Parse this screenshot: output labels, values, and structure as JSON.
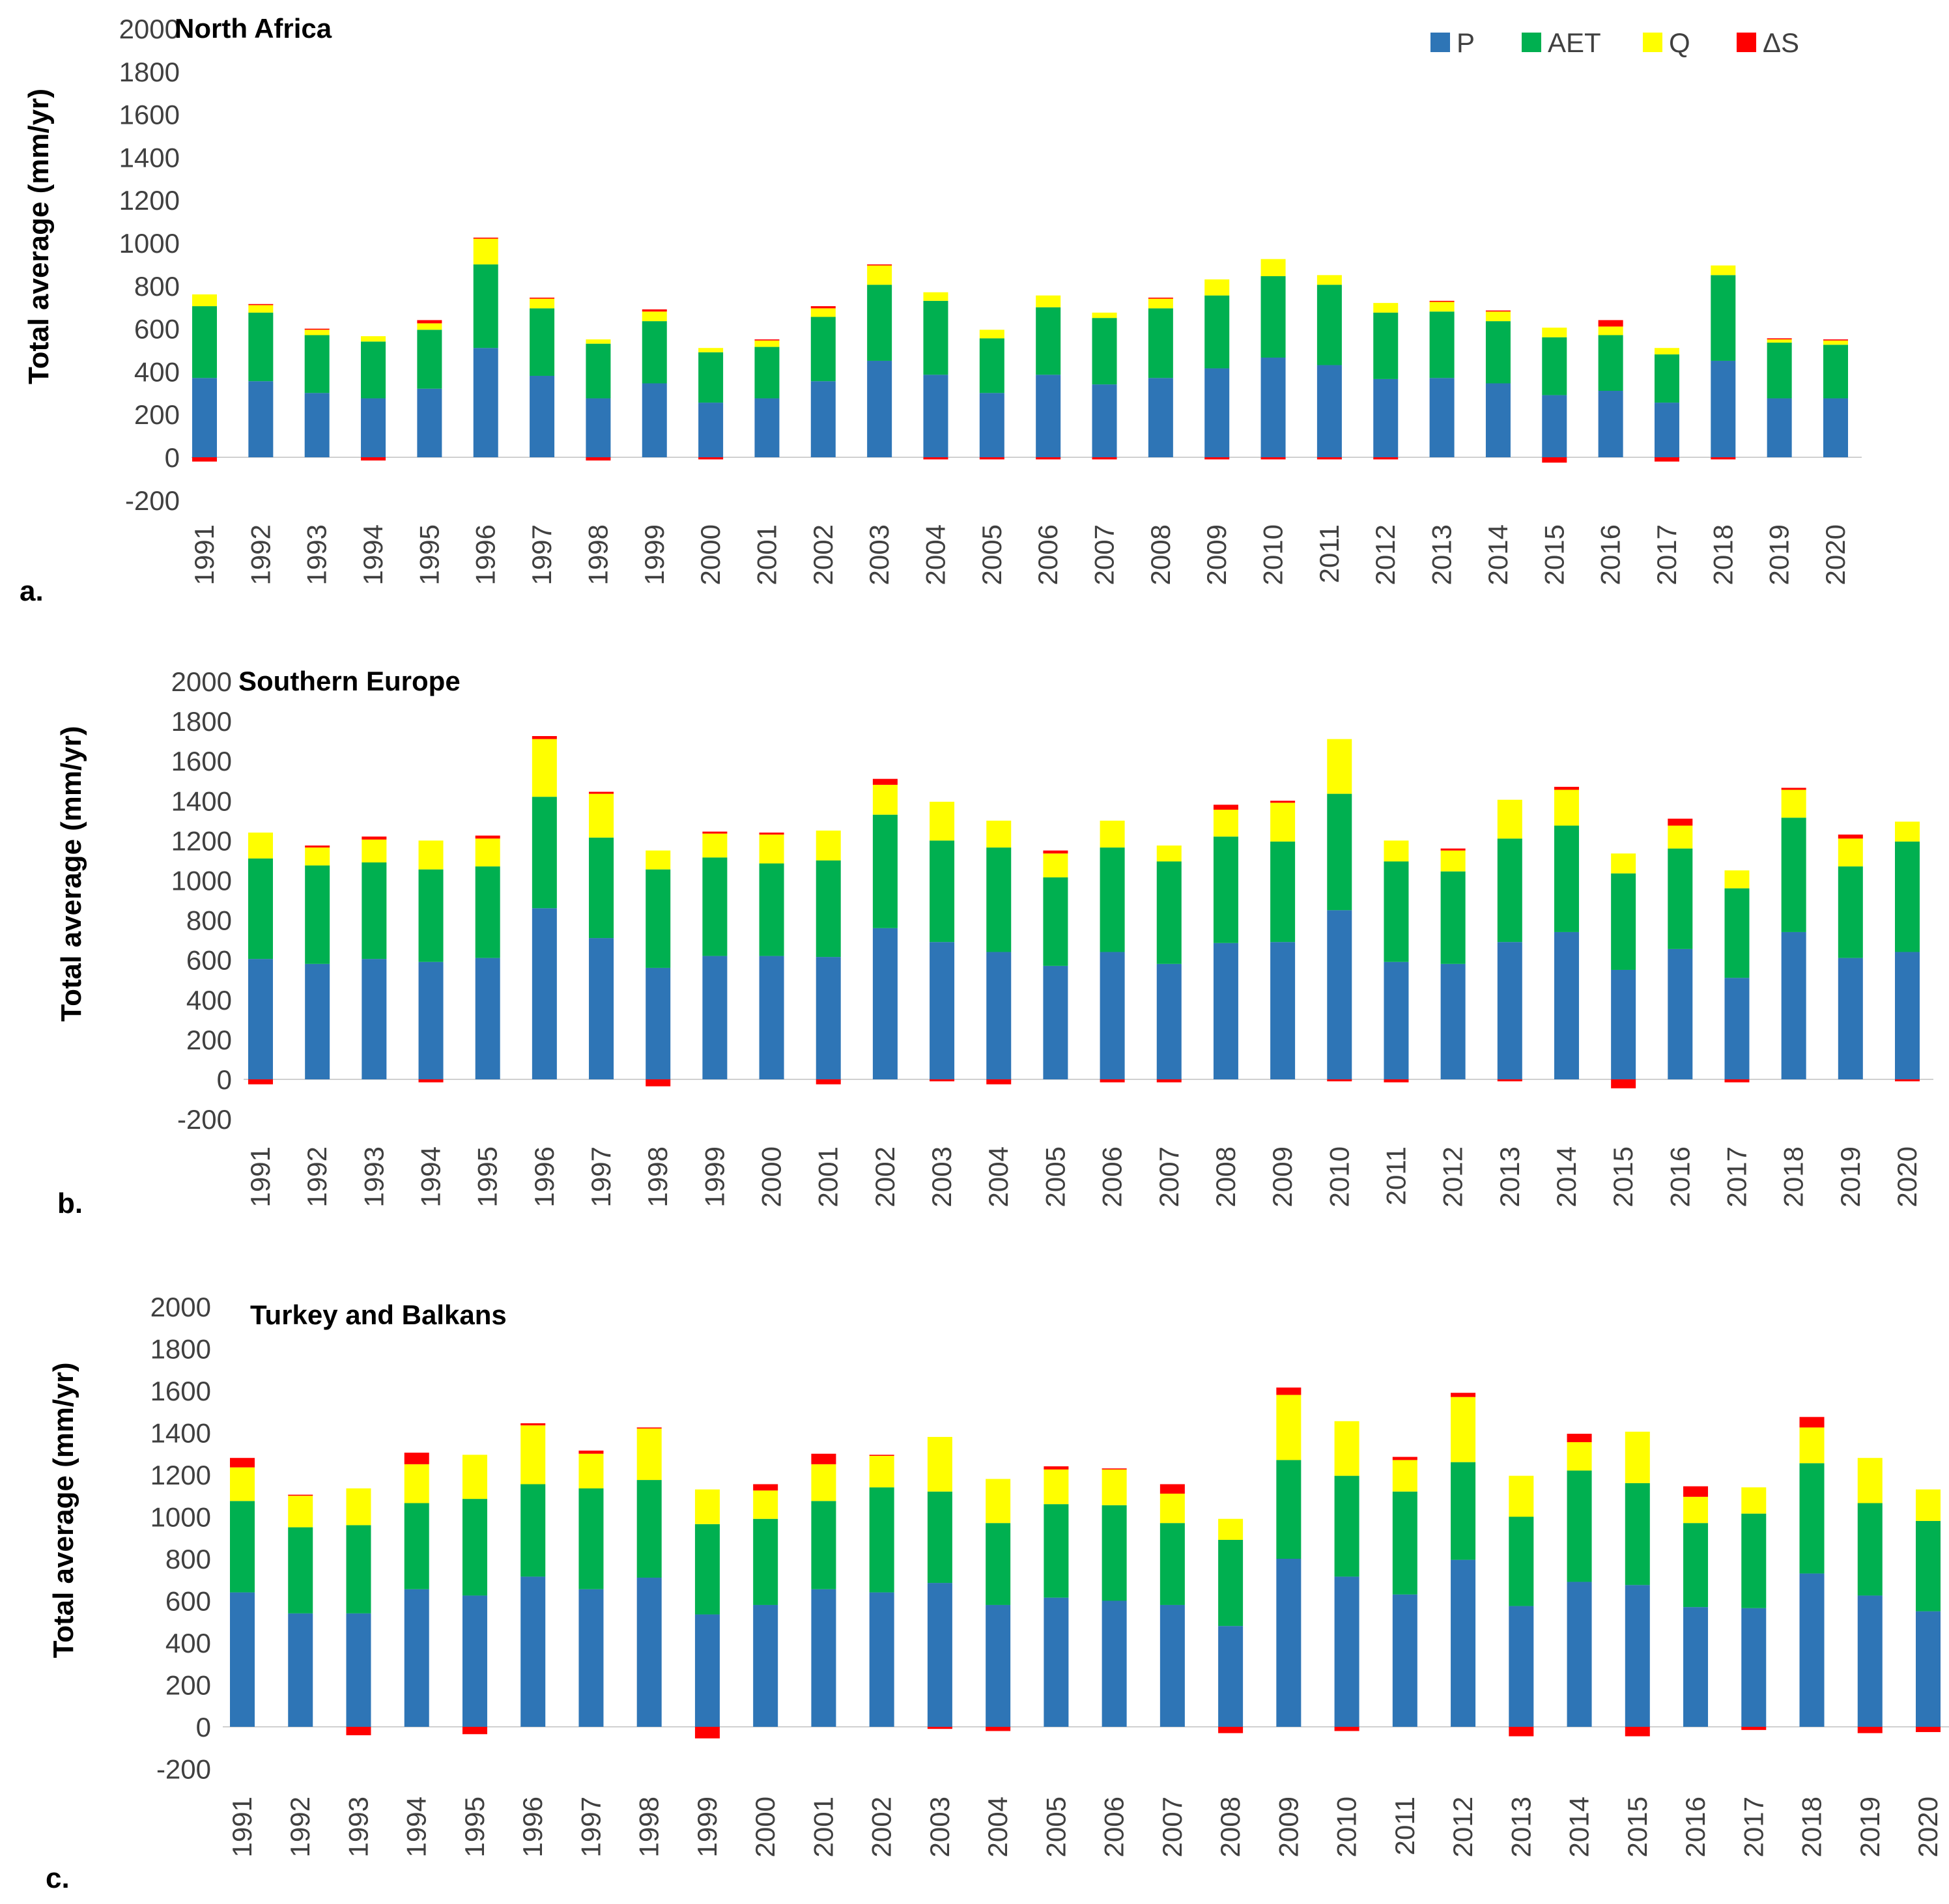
{
  "legend": {
    "position": "top-right",
    "items": [
      {
        "label": "P",
        "color": "#2E75B6"
      },
      {
        "label": "AET",
        "color": "#00B050"
      },
      {
        "label": "Q",
        "color": "#FFFF00"
      },
      {
        "label": "ΔS",
        "color": "#FF0000"
      }
    ]
  },
  "chart_data": [
    {
      "type": "bar",
      "stacked": true,
      "panel_label": "a.",
      "title": "North Africa",
      "ylabel": "Total average (mm/yr)",
      "ylim": [
        -200,
        2000
      ],
      "yticks": [
        -200,
        0,
        200,
        400,
        600,
        800,
        1000,
        1200,
        1400,
        1600,
        1800,
        2000
      ],
      "grid": false,
      "categories": [
        "1991",
        "1992",
        "1993",
        "1994",
        "1995",
        "1996",
        "1997",
        "1998",
        "1999",
        "2000",
        "2001",
        "2002",
        "2003",
        "2004",
        "2005",
        "2006",
        "2007",
        "2008",
        "2009",
        "2010",
        "2011",
        "2012",
        "2013",
        "2014",
        "2015",
        "2016",
        "2017",
        "2018",
        "2019",
        "2020"
      ],
      "series": [
        {
          "name": "P",
          "color": "#2E75B6",
          "values": [
            370,
            355,
            300,
            275,
            320,
            510,
            380,
            275,
            345,
            255,
            275,
            355,
            450,
            385,
            300,
            385,
            340,
            370,
            415,
            465,
            430,
            365,
            370,
            345,
            290,
            310,
            255,
            450,
            275,
            275
          ]
        },
        {
          "name": "AET",
          "color": "#00B050",
          "values": [
            335,
            320,
            270,
            265,
            275,
            390,
            315,
            255,
            290,
            235,
            240,
            300,
            355,
            345,
            255,
            315,
            310,
            325,
            340,
            380,
            375,
            310,
            310,
            290,
            270,
            260,
            225,
            400,
            260,
            250
          ]
        },
        {
          "name": "Q",
          "color": "#FFFF00",
          "values": [
            55,
            35,
            25,
            25,
            30,
            120,
            45,
            20,
            45,
            20,
            30,
            40,
            90,
            40,
            40,
            55,
            25,
            45,
            75,
            80,
            45,
            45,
            45,
            45,
            45,
            40,
            30,
            45,
            15,
            20
          ]
        },
        {
          "name": "ΔS",
          "color": "#FF0000",
          "values": [
            -20,
            5,
            5,
            -15,
            15,
            5,
            5,
            -15,
            10,
            -10,
            5,
            10,
            5,
            -10,
            -10,
            -10,
            -10,
            5,
            -10,
            -10,
            -10,
            -10,
            5,
            5,
            -25,
            30,
            -20,
            -10,
            5,
            5
          ]
        }
      ]
    },
    {
      "type": "bar",
      "stacked": true,
      "panel_label": "b.",
      "title": "Southern Europe",
      "ylabel": "Total average (mm/yr)",
      "ylim": [
        -200,
        2000
      ],
      "yticks": [
        -200,
        0,
        200,
        400,
        600,
        800,
        1000,
        1200,
        1400,
        1600,
        1800,
        2000
      ],
      "grid": false,
      "categories": [
        "1991",
        "1992",
        "1993",
        "1994",
        "1995",
        "1996",
        "1997",
        "1998",
        "1999",
        "2000",
        "2001",
        "2002",
        "2003",
        "2004",
        "2005",
        "2006",
        "2007",
        "2008",
        "2009",
        "2010",
        "2011",
        "2012",
        "2013",
        "2014",
        "2015",
        "2016",
        "2017",
        "2018",
        "2019",
        "2020"
      ],
      "series": [
        {
          "name": "P",
          "color": "#2E75B6",
          "values": [
            605,
            580,
            605,
            590,
            610,
            860,
            710,
            560,
            620,
            620,
            615,
            760,
            690,
            640,
            570,
            640,
            580,
            685,
            690,
            850,
            590,
            580,
            690,
            740,
            550,
            655,
            510,
            740,
            610,
            640
          ]
        },
        {
          "name": "AET",
          "color": "#00B050",
          "values": [
            505,
            495,
            485,
            465,
            460,
            560,
            505,
            495,
            495,
            465,
            485,
            570,
            510,
            525,
            445,
            525,
            515,
            535,
            505,
            585,
            505,
            465,
            520,
            535,
            485,
            505,
            450,
            575,
            460,
            555
          ]
        },
        {
          "name": "Q",
          "color": "#FFFF00",
          "values": [
            130,
            90,
            115,
            145,
            140,
            290,
            220,
            95,
            120,
            145,
            150,
            150,
            195,
            135,
            120,
            135,
            80,
            135,
            195,
            275,
            105,
            105,
            195,
            180,
            100,
            115,
            90,
            140,
            140,
            100
          ]
        },
        {
          "name": "ΔS",
          "color": "#FF0000",
          "values": [
            -25,
            10,
            15,
            -15,
            15,
            15,
            10,
            -35,
            10,
            10,
            -25,
            30,
            -10,
            -25,
            15,
            -15,
            -15,
            25,
            10,
            -10,
            -15,
            10,
            -10,
            15,
            -45,
            35,
            -15,
            10,
            20,
            -10
          ]
        }
      ]
    },
    {
      "type": "bar",
      "stacked": true,
      "panel_label": "c.",
      "title": "Turkey and Balkans",
      "ylabel": "Total average (mm/yr)",
      "ylim": [
        -200,
        2000
      ],
      "yticks": [
        -200,
        0,
        200,
        400,
        600,
        800,
        1000,
        1200,
        1400,
        1600,
        1800,
        2000
      ],
      "grid": false,
      "categories": [
        "1991",
        "1992",
        "1993",
        "1994",
        "1995",
        "1996",
        "1997",
        "1998",
        "1999",
        "2000",
        "2001",
        "2002",
        "2003",
        "2004",
        "2005",
        "2006",
        "2007",
        "2008",
        "2009",
        "2010",
        "2011",
        "2012",
        "2013",
        "2014",
        "2015",
        "2016",
        "2017",
        "2018",
        "2019",
        "2020"
      ],
      "series": [
        {
          "name": "P",
          "color": "#2E75B6",
          "values": [
            640,
            540,
            540,
            655,
            625,
            715,
            655,
            710,
            535,
            580,
            655,
            640,
            685,
            580,
            615,
            600,
            580,
            480,
            800,
            715,
            630,
            795,
            575,
            690,
            675,
            570,
            565,
            730,
            625,
            550
          ]
        },
        {
          "name": "AET",
          "color": "#00B050",
          "values": [
            435,
            410,
            420,
            410,
            460,
            440,
            480,
            465,
            430,
            410,
            420,
            500,
            435,
            390,
            445,
            455,
            390,
            410,
            470,
            480,
            490,
            465,
            425,
            530,
            485,
            400,
            450,
            525,
            440,
            430
          ]
        },
        {
          "name": "Q",
          "color": "#FFFF00",
          "values": [
            160,
            150,
            175,
            185,
            210,
            280,
            165,
            245,
            165,
            135,
            175,
            150,
            260,
            210,
            165,
            170,
            140,
            100,
            310,
            260,
            150,
            310,
            195,
            135,
            245,
            125,
            125,
            170,
            215,
            150
          ]
        },
        {
          "name": "ΔS",
          "color": "#FF0000",
          "values": [
            45,
            5,
            -40,
            55,
            -35,
            10,
            15,
            5,
            -55,
            30,
            50,
            5,
            -10,
            -20,
            15,
            5,
            45,
            -30,
            35,
            -20,
            15,
            20,
            -45,
            40,
            -45,
            50,
            -15,
            50,
            -30,
            -25
          ]
        }
      ]
    }
  ]
}
